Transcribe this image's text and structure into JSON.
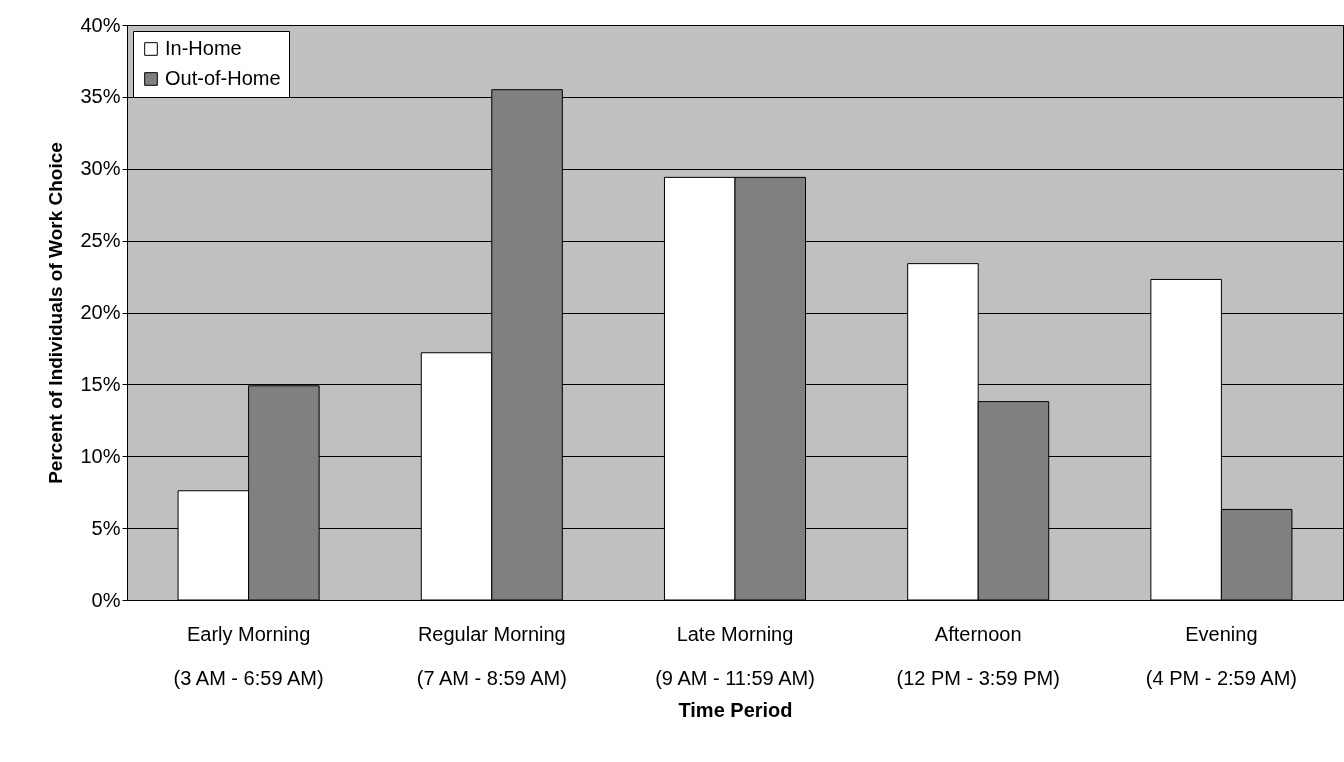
{
  "chart_data": {
    "type": "bar",
    "xlabel": "Time Period",
    "ylabel": "Percent of Individuals of Work Choice",
    "categories": [
      "Early Morning\n(3 AM - 6:59 AM)",
      "Regular Morning\n(7 AM - 8:59 AM)",
      "Late Morning\n(9 AM - 11:59 AM)",
      "Afternoon\n(12 PM - 3:59 PM)",
      "Evening\n(4 PM - 2:59 AM)"
    ],
    "series": [
      {
        "name": "In-Home",
        "color": "#ffffff",
        "values": [
          7.6,
          17.2,
          29.4,
          23.4,
          22.3
        ]
      },
      {
        "name": "Out-of-Home",
        "color": "#808080",
        "values": [
          14.9,
          35.5,
          29.4,
          13.8,
          6.3
        ]
      }
    ],
    "ylim": [
      0,
      40
    ],
    "yticks": [
      {
        "value": 0,
        "label": "0%"
      },
      {
        "value": 5,
        "label": "5%"
      },
      {
        "value": 10,
        "label": "10%"
      },
      {
        "value": 15,
        "label": "15%"
      },
      {
        "value": 20,
        "label": "20%"
      },
      {
        "value": 25,
        "label": "25%"
      },
      {
        "value": 30,
        "label": "30%"
      },
      {
        "value": 35,
        "label": "35%"
      },
      {
        "value": 40,
        "label": "40%"
      }
    ],
    "grid": "y",
    "legend": "top left"
  }
}
